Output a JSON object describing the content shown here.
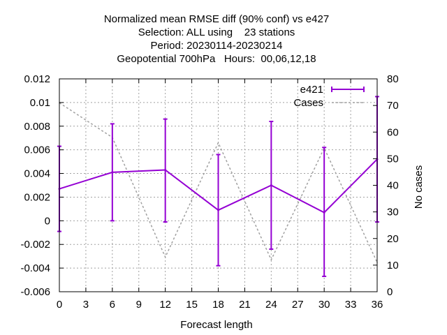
{
  "chart_data": {
    "type": "line",
    "title_lines": [
      "Normalized mean RMSE diff (90% conf) vs e427",
      "Selection: ALL using    23 stations",
      "Period: 20230114-20230214",
      "Geopotential 700hPa   Hours:  00,06,12,18"
    ],
    "xlabel": "Forecast length",
    "ylabel": "",
    "y2label": "No cases",
    "xlim": [
      0,
      36
    ],
    "ylim": [
      -0.006,
      0.012
    ],
    "y2lim": [
      0,
      80
    ],
    "x_ticks": [
      0,
      3,
      6,
      9,
      12,
      15,
      18,
      21,
      24,
      27,
      30,
      33,
      36
    ],
    "x_tick_labels": [
      "0",
      "3",
      "6",
      "9",
      "12",
      "15",
      "18",
      "21",
      "24",
      "27",
      "30",
      "33",
      "36"
    ],
    "y_ticks": [
      -0.006,
      -0.004,
      -0.002,
      0,
      0.002,
      0.004,
      0.006,
      0.008,
      0.01,
      0.012
    ],
    "y_tick_labels": [
      "-0.006",
      "-0.004",
      "-0.002",
      "0",
      "0.002",
      "0.004",
      "0.006",
      "0.008",
      "0.01",
      "0.012"
    ],
    "y2_ticks": [
      0,
      10,
      20,
      30,
      40,
      50,
      60,
      70,
      80
    ],
    "y2_tick_labels": [
      "0",
      "10",
      "20",
      "30",
      "40",
      "50",
      "60",
      "70",
      "80"
    ],
    "grid": true,
    "legend_position": "top-right",
    "series": [
      {
        "name": "e421",
        "axis": "y",
        "style": "line-errorbars",
        "color": "#9400d3",
        "x": [
          0,
          6,
          12,
          18,
          24,
          30,
          36
        ],
        "y": [
          0.0027,
          0.0041,
          0.0043,
          0.0009,
          0.003,
          0.0007,
          0.0052
        ],
        "y_low": [
          -0.0009,
          0.0,
          -0.0001,
          -0.0038,
          -0.0024,
          -0.0047,
          -0.0001
        ],
        "y_high": [
          0.0063,
          0.0082,
          0.0086,
          0.0056,
          0.0084,
          0.0062,
          0.0105
        ]
      },
      {
        "name": "Cases",
        "axis": "y2",
        "style": "dashed",
        "color": "#a0a0a0",
        "x": [
          0,
          6,
          12,
          18,
          24,
          30,
          36
        ],
        "y": [
          71,
          58,
          13,
          56,
          12,
          54,
          11
        ]
      }
    ]
  }
}
